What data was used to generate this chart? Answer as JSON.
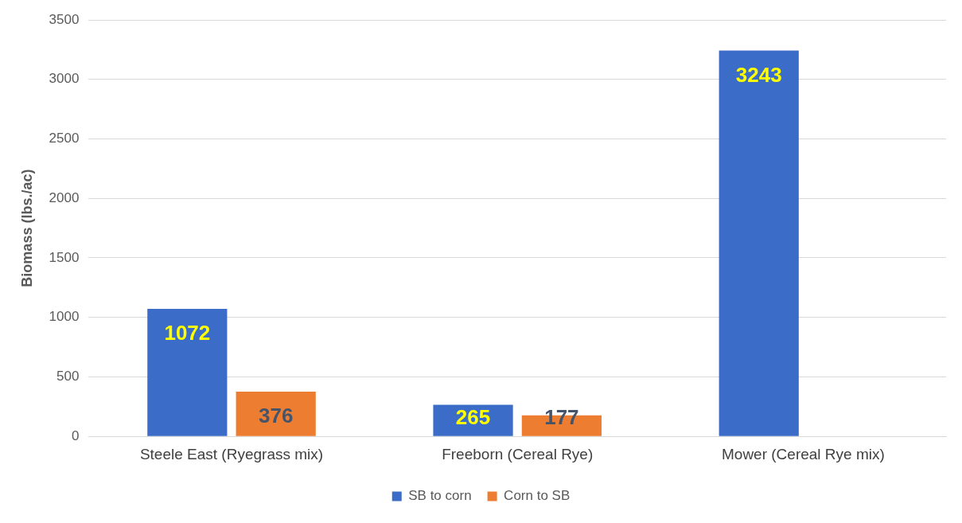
{
  "chart_data": {
    "type": "bar",
    "ylabel": "Biomass (lbs./ac)",
    "categories": [
      "Steele East (Ryegrass mix)",
      "Freeborn (Cereal Rye)",
      "Mower (Cereal Rye mix)"
    ],
    "series": [
      {
        "name": "SB to corn",
        "color": "#3a6cc8",
        "values": [
          1072,
          265,
          3243
        ]
      },
      {
        "name": "Corn to SB",
        "color": "#ed7d31",
        "values": [
          376,
          177,
          null
        ]
      }
    ],
    "ylim": [
      0,
      3500
    ],
    "yticks": [
      0,
      500,
      1000,
      1500,
      2000,
      2500,
      3000,
      3500
    ],
    "grid": "y",
    "legend": "bottom",
    "data_labels": true
  }
}
